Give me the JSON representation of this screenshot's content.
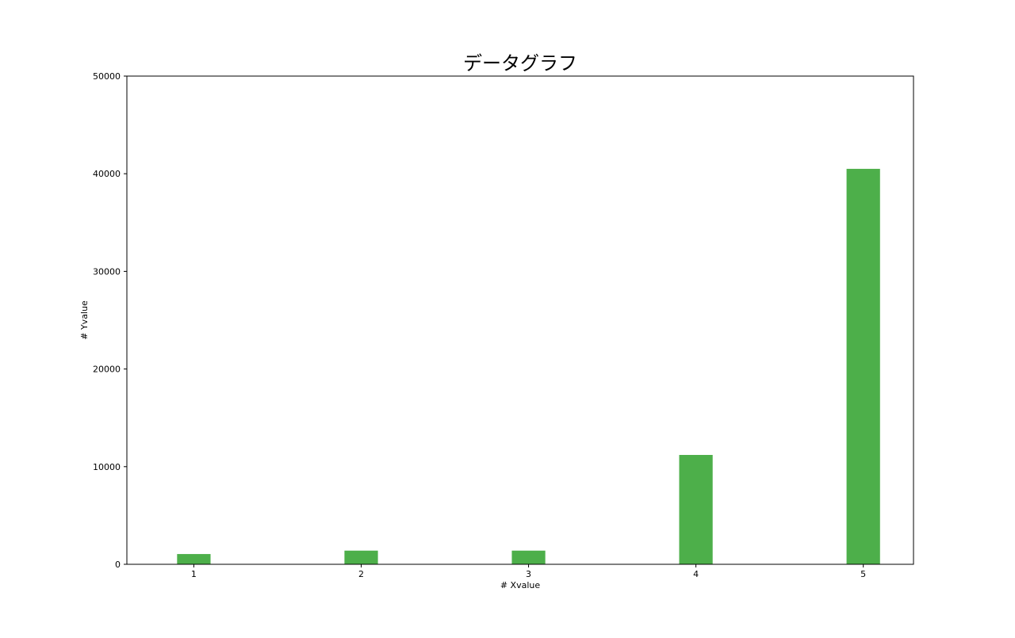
{
  "chart_data": {
    "type": "bar",
    "title": "データグラフ",
    "xlabel": "# Xvalue",
    "ylabel": "# Yvalue",
    "categories": [
      "1",
      "2",
      "3",
      "4",
      "5"
    ],
    "x": [
      1,
      2,
      3,
      4,
      5
    ],
    "values": [
      1050,
      1400,
      1400,
      11200,
      40500
    ],
    "ylim": [
      0,
      50000
    ],
    "xlim": [
      0.6,
      5.3
    ],
    "yticks": [
      0,
      10000,
      20000,
      30000,
      40000,
      50000
    ],
    "ytick_labels": [
      "0",
      "10000",
      "20000",
      "30000",
      "40000",
      "50000"
    ],
    "xticks": [
      1,
      2,
      3,
      4,
      5
    ],
    "xtick_labels": [
      "1",
      "2",
      "3",
      "4",
      "5"
    ],
    "bar_color": "#4daf4a",
    "grid": false,
    "legend": null
  }
}
